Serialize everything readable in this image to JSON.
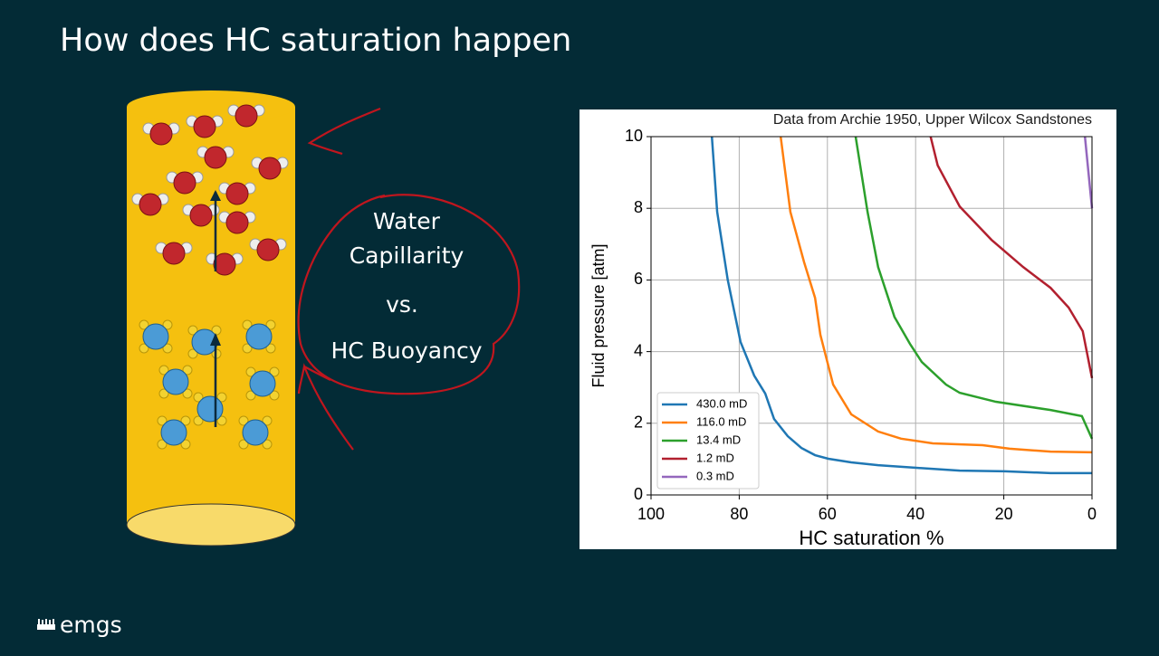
{
  "title": "How does HC saturation happen",
  "diagram": {
    "labels": [
      "Water",
      "Capillarity",
      "vs.",
      "HC Buoyancy"
    ]
  },
  "logo": "emgs",
  "chart_data": {
    "type": "line",
    "annotation": "Data from Archie 1950, Upper Wilcox Sandstones",
    "xlabel": "HC saturation %",
    "ylabel": "Fluid pressure [atm]",
    "xlim": [
      100,
      0
    ],
    "ylim": [
      0,
      10
    ],
    "xticks": [
      100,
      80,
      60,
      40,
      20,
      0
    ],
    "yticks": [
      0,
      2,
      4,
      6,
      8,
      10
    ],
    "grid": true,
    "legend": "lower left",
    "series": [
      {
        "name": "430.0 mD",
        "color": "#1f77b4",
        "x": [
          86.2,
          85,
          82.6,
          79.7,
          76.6,
          74.1,
          72.1,
          69,
          65.9,
          62.8,
          59.8,
          54.6,
          48.5,
          40.2,
          30,
          19.7,
          9.4,
          0
        ],
        "values": [
          10,
          7.9,
          6.0,
          4.27,
          3.33,
          2.83,
          2.12,
          1.64,
          1.31,
          1.11,
          1.01,
          0.91,
          0.83,
          0.76,
          0.68,
          0.66,
          0.61,
          0.61
        ]
      },
      {
        "name": "116.0 mD",
        "color": "#ff7f0e",
        "x": [
          70.6,
          68.4,
          65.3,
          62.8,
          61.6,
          58.7,
          54.6,
          48.5,
          43.3,
          36.1,
          24.8,
          18.7,
          9.4,
          0
        ],
        "values": [
          10,
          7.9,
          6.5,
          5.5,
          4.47,
          3.08,
          2.25,
          1.77,
          1.57,
          1.44,
          1.39,
          1.29,
          1.21,
          1.19
        ]
      },
      {
        "name": "13.4 mD",
        "color": "#2ca02c",
        "x": [
          53.6,
          50.9,
          48.5,
          44.8,
          41.3,
          38.6,
          33.1,
          30,
          21.8,
          9.4,
          2.3,
          0
        ],
        "values": [
          10,
          7.9,
          6.36,
          4.97,
          4.22,
          3.71,
          3.08,
          2.85,
          2.6,
          2.37,
          2.2,
          1.57
        ]
      },
      {
        "name": "1.2 mD",
        "color": "#b2202f",
        "x": [
          36.6,
          35,
          30,
          22.8,
          15.6,
          9.4,
          5.3,
          2.1,
          0
        ],
        "values": [
          10,
          9.2,
          8.05,
          7.12,
          6.36,
          5.78,
          5.23,
          4.57,
          3.26
        ]
      },
      {
        "name": "0.3 mD",
        "color": "#9467bd",
        "x": [
          1.6,
          0
        ],
        "values": [
          10,
          8
        ]
      }
    ]
  }
}
